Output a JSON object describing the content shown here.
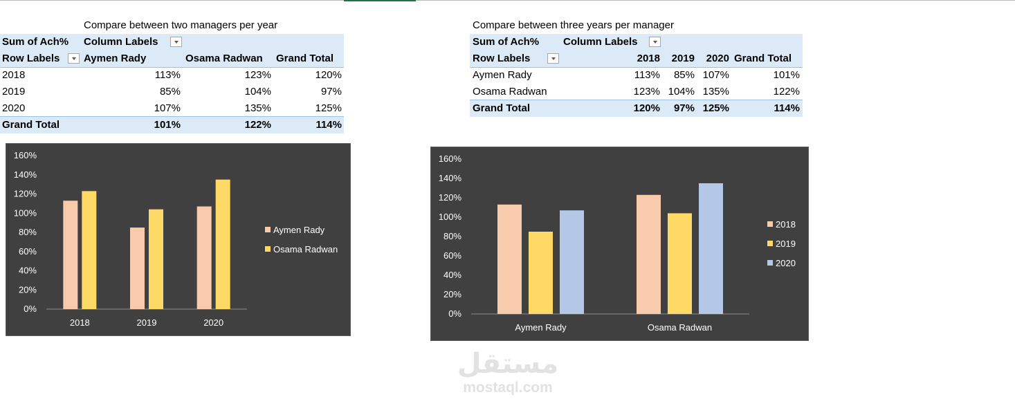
{
  "pivot1": {
    "caption": "Compare between two managers per year",
    "value_field": "Sum of Ach%",
    "column_labels": "Column Labels",
    "row_labels": "Row Labels",
    "columns": [
      "Aymen Rady",
      "Osama Radwan",
      "Grand Total"
    ],
    "rows": [
      {
        "label": "2018",
        "values": [
          "113%",
          "123%",
          "120%"
        ]
      },
      {
        "label": "2019",
        "values": [
          "85%",
          "104%",
          "97%"
        ]
      },
      {
        "label": "2020",
        "values": [
          "107%",
          "135%",
          "125%"
        ]
      }
    ],
    "grand_total": {
      "label": "Grand Total",
      "values": [
        "101%",
        "122%",
        "114%"
      ]
    }
  },
  "pivot2": {
    "caption": "Compare between three years per manager",
    "value_field": "Sum of Ach%",
    "column_labels": "Column Labels",
    "row_labels": "Row Labels",
    "columns": [
      "2018",
      "2019",
      "2020",
      "Grand Total"
    ],
    "rows": [
      {
        "label": "Aymen Rady",
        "values": [
          "113%",
          "85%",
          "107%",
          "101%"
        ]
      },
      {
        "label": "Osama Radwan",
        "values": [
          "123%",
          "104%",
          "135%",
          "122%"
        ]
      }
    ],
    "grand_total": {
      "label": "Grand Total",
      "values": [
        "120%",
        "97%",
        "125%",
        "114%"
      ]
    }
  },
  "watermark": {
    "arabic": "مستقل",
    "latin": "mostaql.com"
  },
  "colors": {
    "accent_green": "#217346",
    "pivot_header_bg": "#dce9f6",
    "chart_bg": "#404040",
    "series_peach": "#f8cbad",
    "series_yellow": "#ffd966",
    "series_blue": "#b4c7e7"
  },
  "chart_data": [
    {
      "type": "bar",
      "categories": [
        "2018",
        "2019",
        "2020"
      ],
      "series": [
        {
          "name": "Aymen Rady",
          "values": [
            1.13,
            0.85,
            1.07
          ],
          "color": "#f8cbad"
        },
        {
          "name": "Osama Radwan",
          "values": [
            1.23,
            1.04,
            1.35
          ],
          "color": "#ffd966"
        }
      ],
      "ylim": [
        0,
        1.6
      ],
      "yticks": [
        "0%",
        "20%",
        "40%",
        "60%",
        "80%",
        "100%",
        "120%",
        "140%",
        "160%"
      ],
      "title": "",
      "xlabel": "",
      "ylabel": "",
      "grid": false,
      "legend": "right"
    },
    {
      "type": "bar",
      "categories": [
        "Aymen Rady",
        "Osama Radwan"
      ],
      "series": [
        {
          "name": "2018",
          "values": [
            1.13,
            1.23
          ],
          "color": "#f8cbad"
        },
        {
          "name": "2019",
          "values": [
            0.85,
            1.04
          ],
          "color": "#ffd966"
        },
        {
          "name": "2020",
          "values": [
            1.07,
            1.35
          ],
          "color": "#b4c7e7"
        }
      ],
      "ylim": [
        0,
        1.6
      ],
      "yticks": [
        "0%",
        "20%",
        "40%",
        "60%",
        "80%",
        "100%",
        "120%",
        "140%",
        "160%"
      ],
      "title": "",
      "xlabel": "",
      "ylabel": "",
      "grid": false,
      "legend": "right"
    }
  ]
}
